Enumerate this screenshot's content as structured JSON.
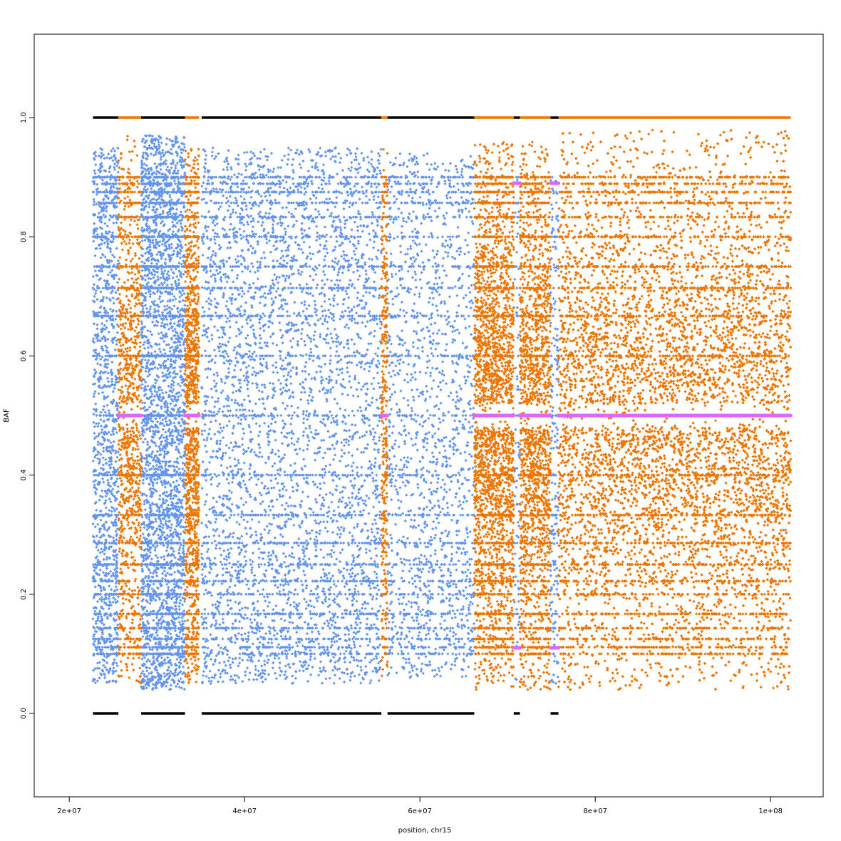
{
  "chart_data": {
    "type": "scatter",
    "title": "",
    "xlabel": "position, chr15",
    "ylabel": "BAF",
    "xlim": [
      16000000,
      106000000
    ],
    "ylim": [
      -0.14,
      1.14
    ],
    "grid": false,
    "legend": "none",
    "x_ticks": [
      20000000,
      40000000,
      60000000,
      80000000,
      100000000
    ],
    "x_tick_labels": [
      "2e+07",
      "4e+07",
      "6e+07",
      "8e+07",
      "1e+08"
    ],
    "y_ticks": [
      0.0,
      0.2,
      0.4,
      0.6,
      0.8,
      1.0
    ],
    "y_tick_labels": [
      "0.0",
      "0.2",
      "0.4",
      "0.6",
      "0.8",
      "1.0"
    ],
    "colors": {
      "normal": "#6495ed",
      "aberrant": "#ee7600",
      "homozygous": "#000000",
      "segment_mean": "#e066ff"
    },
    "series": [
      {
        "color_key": "homozygous",
        "points_type": "homozygous_lines",
        "lines": [
          {
            "y": 1.0,
            "x": [
              22700000,
              25600000
            ],
            "color_key": "homozygous"
          },
          {
            "y": 1.0,
            "x": [
              25600000,
              28200000
            ],
            "color_key": "aberrant"
          },
          {
            "y": 1.0,
            "x": [
              28200000,
              33200000
            ],
            "color_key": "homozygous"
          },
          {
            "y": 1.0,
            "x": [
              33200000,
              34800000
            ],
            "color_key": "aberrant"
          },
          {
            "y": 1.0,
            "x": [
              35100000,
              55600000
            ],
            "color_key": "homozygous"
          },
          {
            "y": 1.0,
            "x": [
              55600000,
              56300000
            ],
            "color_key": "aberrant"
          },
          {
            "y": 1.0,
            "x": [
              56300000,
              66200000
            ],
            "color_key": "homozygous"
          },
          {
            "y": 1.0,
            "x": [
              66200000,
              70700000
            ],
            "color_key": "aberrant"
          },
          {
            "y": 1.0,
            "x": [
              70700000,
              71400000
            ],
            "color_key": "homozygous"
          },
          {
            "y": 1.0,
            "x": [
              71400000,
              74900000
            ],
            "color_key": "aberrant"
          },
          {
            "y": 1.0,
            "x": [
              74900000,
              75800000
            ],
            "color_key": "homozygous"
          },
          {
            "y": 1.0,
            "x": [
              75800000,
              102300000
            ],
            "color_key": "aberrant"
          },
          {
            "y": 0.0,
            "x": [
              22700000,
              25600000
            ],
            "color_key": "homozygous"
          },
          {
            "y": 0.0,
            "x": [
              28200000,
              33200000
            ],
            "color_key": "homozygous"
          },
          {
            "y": 0.0,
            "x": [
              35100000,
              55600000
            ],
            "color_key": "homozygous"
          },
          {
            "y": 0.0,
            "x": [
              56300000,
              66200000
            ],
            "color_key": "homozygous"
          },
          {
            "y": 0.0,
            "x": [
              70700000,
              71400000
            ],
            "color_key": "homozygous"
          },
          {
            "y": 0.0,
            "x": [
              74900000,
              75800000
            ],
            "color_key": "homozygous"
          }
        ]
      },
      {
        "color_key": "segment_mean",
        "points_type": "segments",
        "segments": [
          {
            "x": [
              25600000,
              28200000
            ],
            "y": [
              0.5
            ]
          },
          {
            "x": [
              33200000,
              34800000
            ],
            "y": [
              0.5
            ]
          },
          {
            "x": [
              55600000,
              56300000
            ],
            "y": [
              0.5
            ]
          },
          {
            "x": [
              66200000,
              70700000
            ],
            "y": [
              0.5
            ]
          },
          {
            "x": [
              71400000,
              74900000
            ],
            "y": [
              0.5
            ]
          },
          {
            "x": [
              75800000,
              102300000
            ],
            "y": [
              0.5
            ]
          },
          {
            "x": [
              70700000,
              71400000
            ],
            "y": [
              0.89,
              0.11
            ]
          },
          {
            "x": [
              74900000,
              75800000
            ],
            "y": [
              0.89,
              0.11
            ]
          }
        ]
      },
      {
        "color_key": "normal",
        "points_type": "heterozygous_cloud",
        "regions": [
          {
            "x": [
              22700000,
              25600000
            ],
            "spread": [
              0.05,
              0.95
            ],
            "density": 1500
          },
          {
            "x": [
              28200000,
              33200000
            ],
            "spread": [
              0.04,
              0.97
            ],
            "density": 3800
          },
          {
            "x": [
              35100000,
              55600000
            ],
            "spread": [
              0.05,
              0.95
            ],
            "density": 5200
          },
          {
            "x": [
              56300000,
              66200000
            ],
            "spread": [
              0.06,
              0.94
            ],
            "density": 2000
          },
          {
            "x": [
              70700000,
              71400000
            ],
            "spread": [
              0.05,
              0.9
            ],
            "density": 100
          },
          {
            "x": [
              74900000,
              75800000
            ],
            "spread": [
              0.05,
              0.9
            ],
            "density": 220
          }
        ]
      },
      {
        "color_key": "aberrant",
        "points_type": "heterozygous_cloud",
        "regions": [
          {
            "x": [
              25600000,
              28200000
            ],
            "spread": [
              0.05,
              0.97
            ],
            "density": 1300
          },
          {
            "x": [
              33200000,
              34800000
            ],
            "spread": [
              0.05,
              0.95
            ],
            "density": 1500
          },
          {
            "x": [
              55600000,
              56300000
            ],
            "spread": [
              0.06,
              0.95
            ],
            "density": 400
          },
          {
            "x": [
              66200000,
              70700000
            ],
            "spread": [
              0.04,
              0.96
            ],
            "density": 3200
          },
          {
            "x": [
              71400000,
              74900000
            ],
            "spread": [
              0.04,
              0.96
            ],
            "density": 2200
          },
          {
            "x": [
              75800000,
              102300000
            ],
            "spread": [
              0.04,
              0.98
            ],
            "density": 13000
          }
        ]
      }
    ]
  }
}
